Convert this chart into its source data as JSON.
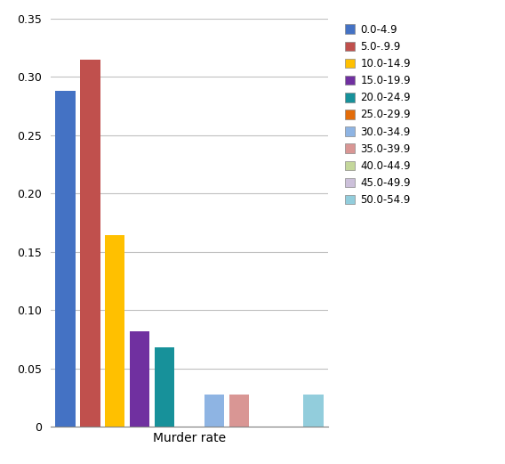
{
  "categories": [
    "0.0-4.9",
    "5.0-.9.9",
    "10.0-14.9",
    "15.0-19.9",
    "20.0-24.9",
    "25.0-29.9",
    "30.0-34.9",
    "35.0-39.9",
    "40.0-44.9",
    "45.0-49.9",
    "50.0-54.9"
  ],
  "legend_labels": [
    "0.0-4.9",
    "5.0-.9.9",
    "10.0-14.9",
    "15.0-19.9",
    "20.0-24.9",
    "25.0-29.9",
    "30.0-34.9",
    "35.0-39.9",
    "40.0-44.9",
    "45.0-49.9",
    "50.0-54.9"
  ],
  "values": [
    0.288,
    0.315,
    0.164,
    0.082,
    0.068,
    0.0,
    0.028,
    0.028,
    0.0,
    0.0,
    0.028
  ],
  "colors": [
    "#4472C4",
    "#C0504D",
    "#FFC000",
    "#7030A0",
    "#17919A",
    "#E36C09",
    "#8EB4E3",
    "#D99694",
    "#C4D79B",
    "#CCC0DA",
    "#92CDDC"
  ],
  "xlabel": "Murder rate",
  "ylabel": "",
  "ylim": [
    0,
    0.35
  ],
  "yticks": [
    0,
    0.05,
    0.1,
    0.15,
    0.2,
    0.25,
    0.3,
    0.35
  ],
  "background_color": "#ffffff",
  "grid_color": "#C0C0C0",
  "bar_width": 0.8,
  "figsize": [
    5.68,
    5.21
  ],
  "dpi": 100
}
